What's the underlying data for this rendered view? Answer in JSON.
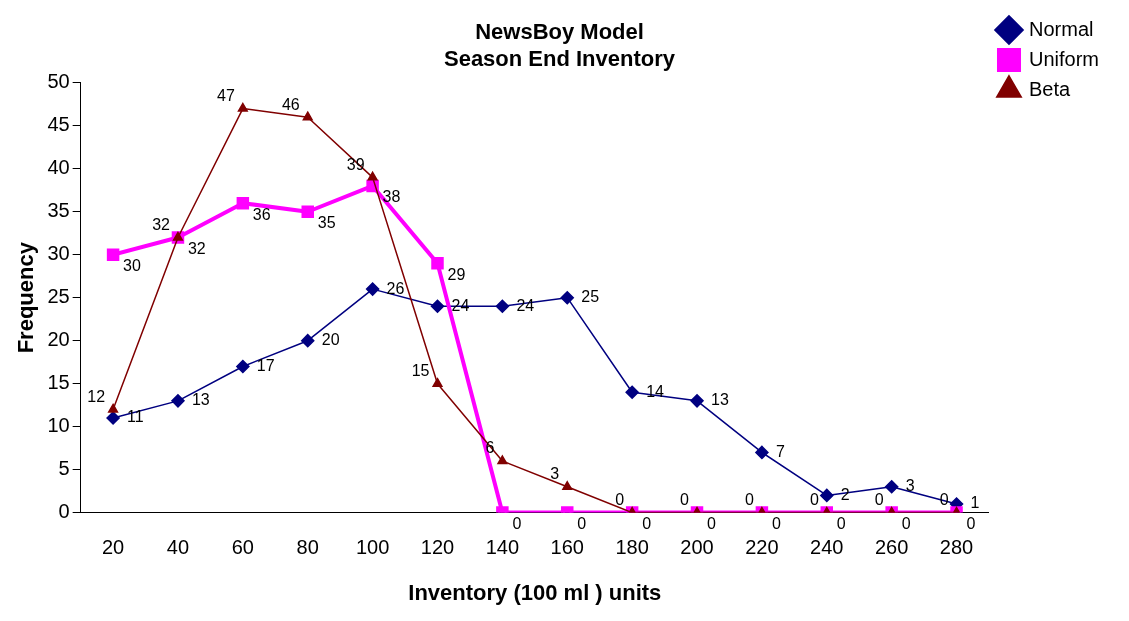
{
  "chart_data": {
    "type": "line",
    "title": "NewsBoy Model\nSeason End Inventory",
    "xlabel": "Inventory (100 ml ) units",
    "ylabel": "Frequency",
    "categories": [
      "20",
      "40",
      "60",
      "80",
      "100",
      "120",
      "140",
      "160",
      "180",
      "200",
      "220",
      "240",
      "260",
      "280"
    ],
    "series": [
      {
        "name": "Normal",
        "color": "#000080",
        "marker": "diamond",
        "values": [
          11,
          13,
          17,
          20,
          26,
          24,
          24,
          25,
          14,
          13,
          7,
          2,
          3,
          1
        ]
      },
      {
        "name": "Uniform",
        "color": "#ff00ff",
        "marker": "square",
        "values": [
          30,
          32,
          36,
          35,
          38,
          29,
          0,
          0,
          0,
          0,
          0,
          0,
          0,
          0
        ]
      },
      {
        "name": "Beta",
        "color": "#800000",
        "marker": "triangle",
        "values": [
          12,
          32,
          47,
          46,
          39,
          15,
          6,
          3,
          0,
          0,
          0,
          0,
          0,
          0
        ]
      }
    ],
    "ylim": [
      0,
      50
    ],
    "yticks": [
      0,
      5,
      10,
      15,
      20,
      25,
      30,
      35,
      40,
      45,
      50
    ],
    "grid": false,
    "legend": "top right",
    "data_labels": true,
    "line_style": "solid"
  }
}
